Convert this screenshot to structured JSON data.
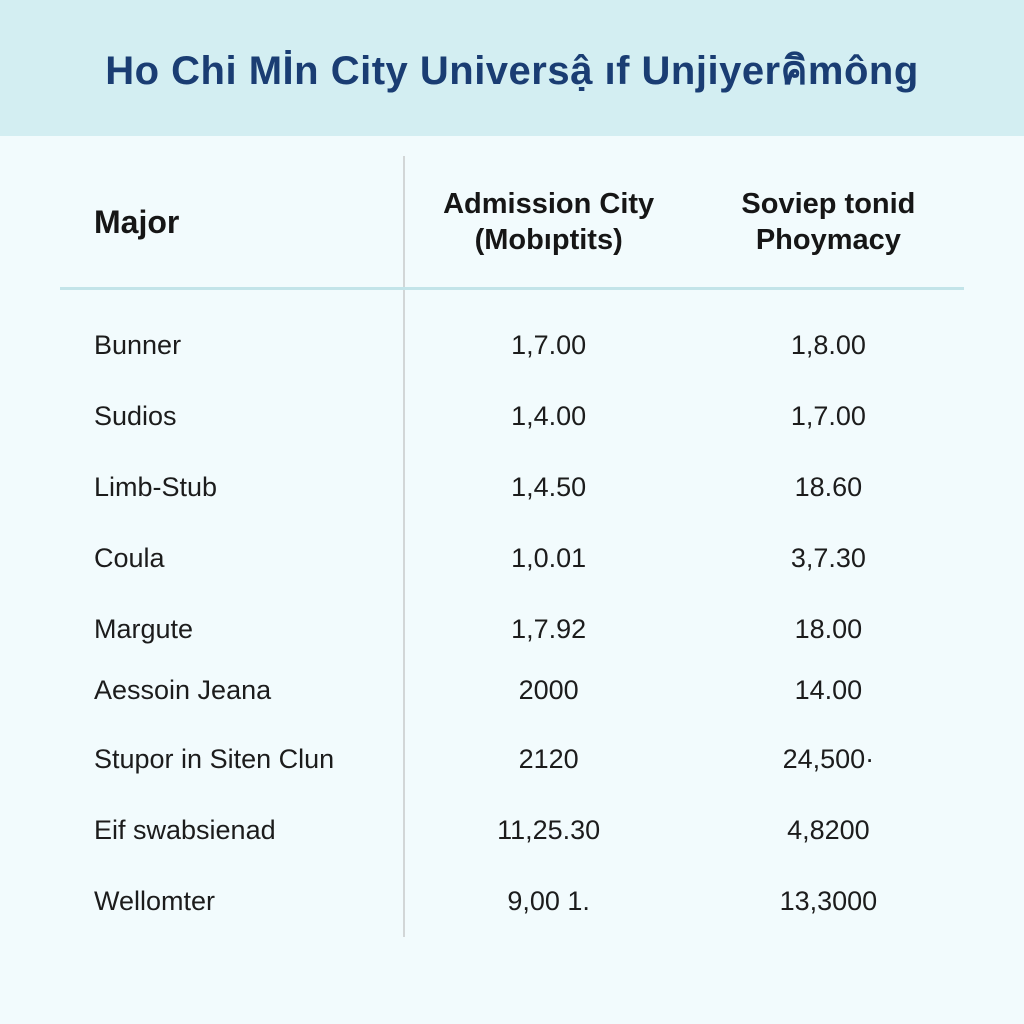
{
  "header": {
    "title": "Ho Chi Mİn City Universậ ıf Unjiyerคิmông"
  },
  "table": {
    "type": "table",
    "background_color": "#f2fbfd",
    "header_bg_color": "#d3eef2",
    "title_color": "#1a3d73",
    "divider_color": "#c3e4e9",
    "column_divider_color": "#d2d6d7",
    "text_color": "#1c1c1c",
    "title_fontsize": 40,
    "header_fontsize": 29,
    "cell_fontsize": 27,
    "columns": [
      {
        "label": "Major",
        "align": "left",
        "width_pct": 38
      },
      {
        "label": "Admission City\n(Mobıptits)",
        "align": "center",
        "width_pct": 32
      },
      {
        "label": "Soviep tonid\nPhoymacy",
        "align": "center",
        "width_pct": 30
      }
    ],
    "rows": [
      {
        "major": "Bunner",
        "c1": "1,7.00",
        "c2": "1,8.00",
        "tight": false
      },
      {
        "major": "Sudios",
        "c1": "1,4.00",
        "c2": "1,7.00",
        "tight": false
      },
      {
        "major": "Limb-Stub",
        "c1": "1,4.50",
        "c2": "18.60",
        "tight": false
      },
      {
        "major": "Coula",
        "c1": "1,0.01",
        "c2": "3,7.30",
        "tight": false
      },
      {
        "major": "Margute",
        "c1": "1,7.92",
        "c2": "18.00",
        "tight": false
      },
      {
        "major": "Aessoin Jeana",
        "c1": "2000",
        "c2": "14.00",
        "tight": true
      },
      {
        "major": "Stupor in Siten Clun",
        "c1": "2120",
        "c2": "24,500·",
        "tight": false
      },
      {
        "major": "Eif swabsienad",
        "c1": "11,25.30",
        "c2": "4,8200",
        "tight": false
      },
      {
        "major": "Wellomter",
        "c1": "9,00 1.",
        "c2": "13,3000",
        "tight": false
      }
    ]
  }
}
